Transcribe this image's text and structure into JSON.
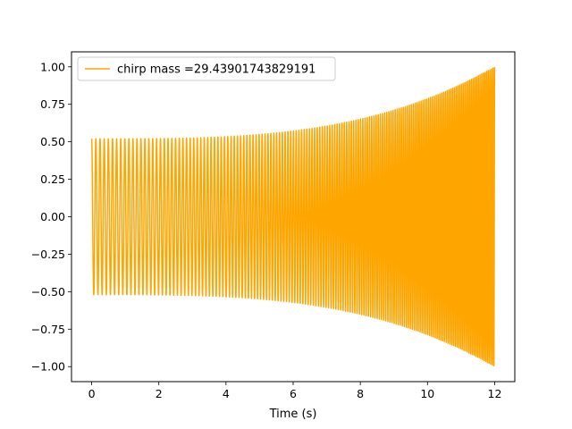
{
  "chart_data": {
    "type": "line",
    "title": "",
    "xlabel": "Time (s)",
    "ylabel": "",
    "xlim": [
      -0.6,
      12.6
    ],
    "ylim": [
      -1.1,
      1.1
    ],
    "xticks": [
      0,
      2,
      4,
      6,
      8,
      10,
      12
    ],
    "xtick_labels": [
      "0",
      "2",
      "4",
      "6",
      "8",
      "10",
      "12"
    ],
    "yticks": [
      1.0,
      0.75,
      0.5,
      0.25,
      0.0,
      -0.25,
      -0.5,
      -0.75,
      -1.0
    ],
    "ytick_labels": [
      "1.00",
      "0.75",
      "0.50",
      "0.25",
      "0.00",
      "−0.25",
      "−0.50",
      "−0.75",
      "−1.00"
    ],
    "grid": false,
    "legend_position": "top-left",
    "series": [
      {
        "name": "chirp mass =29.43901743829191",
        "color": "#ffa500",
        "signal": "chirp",
        "x_start": 0,
        "x_end": 12,
        "amplitude_start": 0.52,
        "amplitude_end": 1.0,
        "frequency_start_hz": 8,
        "frequency_end_hz": 21
      }
    ]
  }
}
